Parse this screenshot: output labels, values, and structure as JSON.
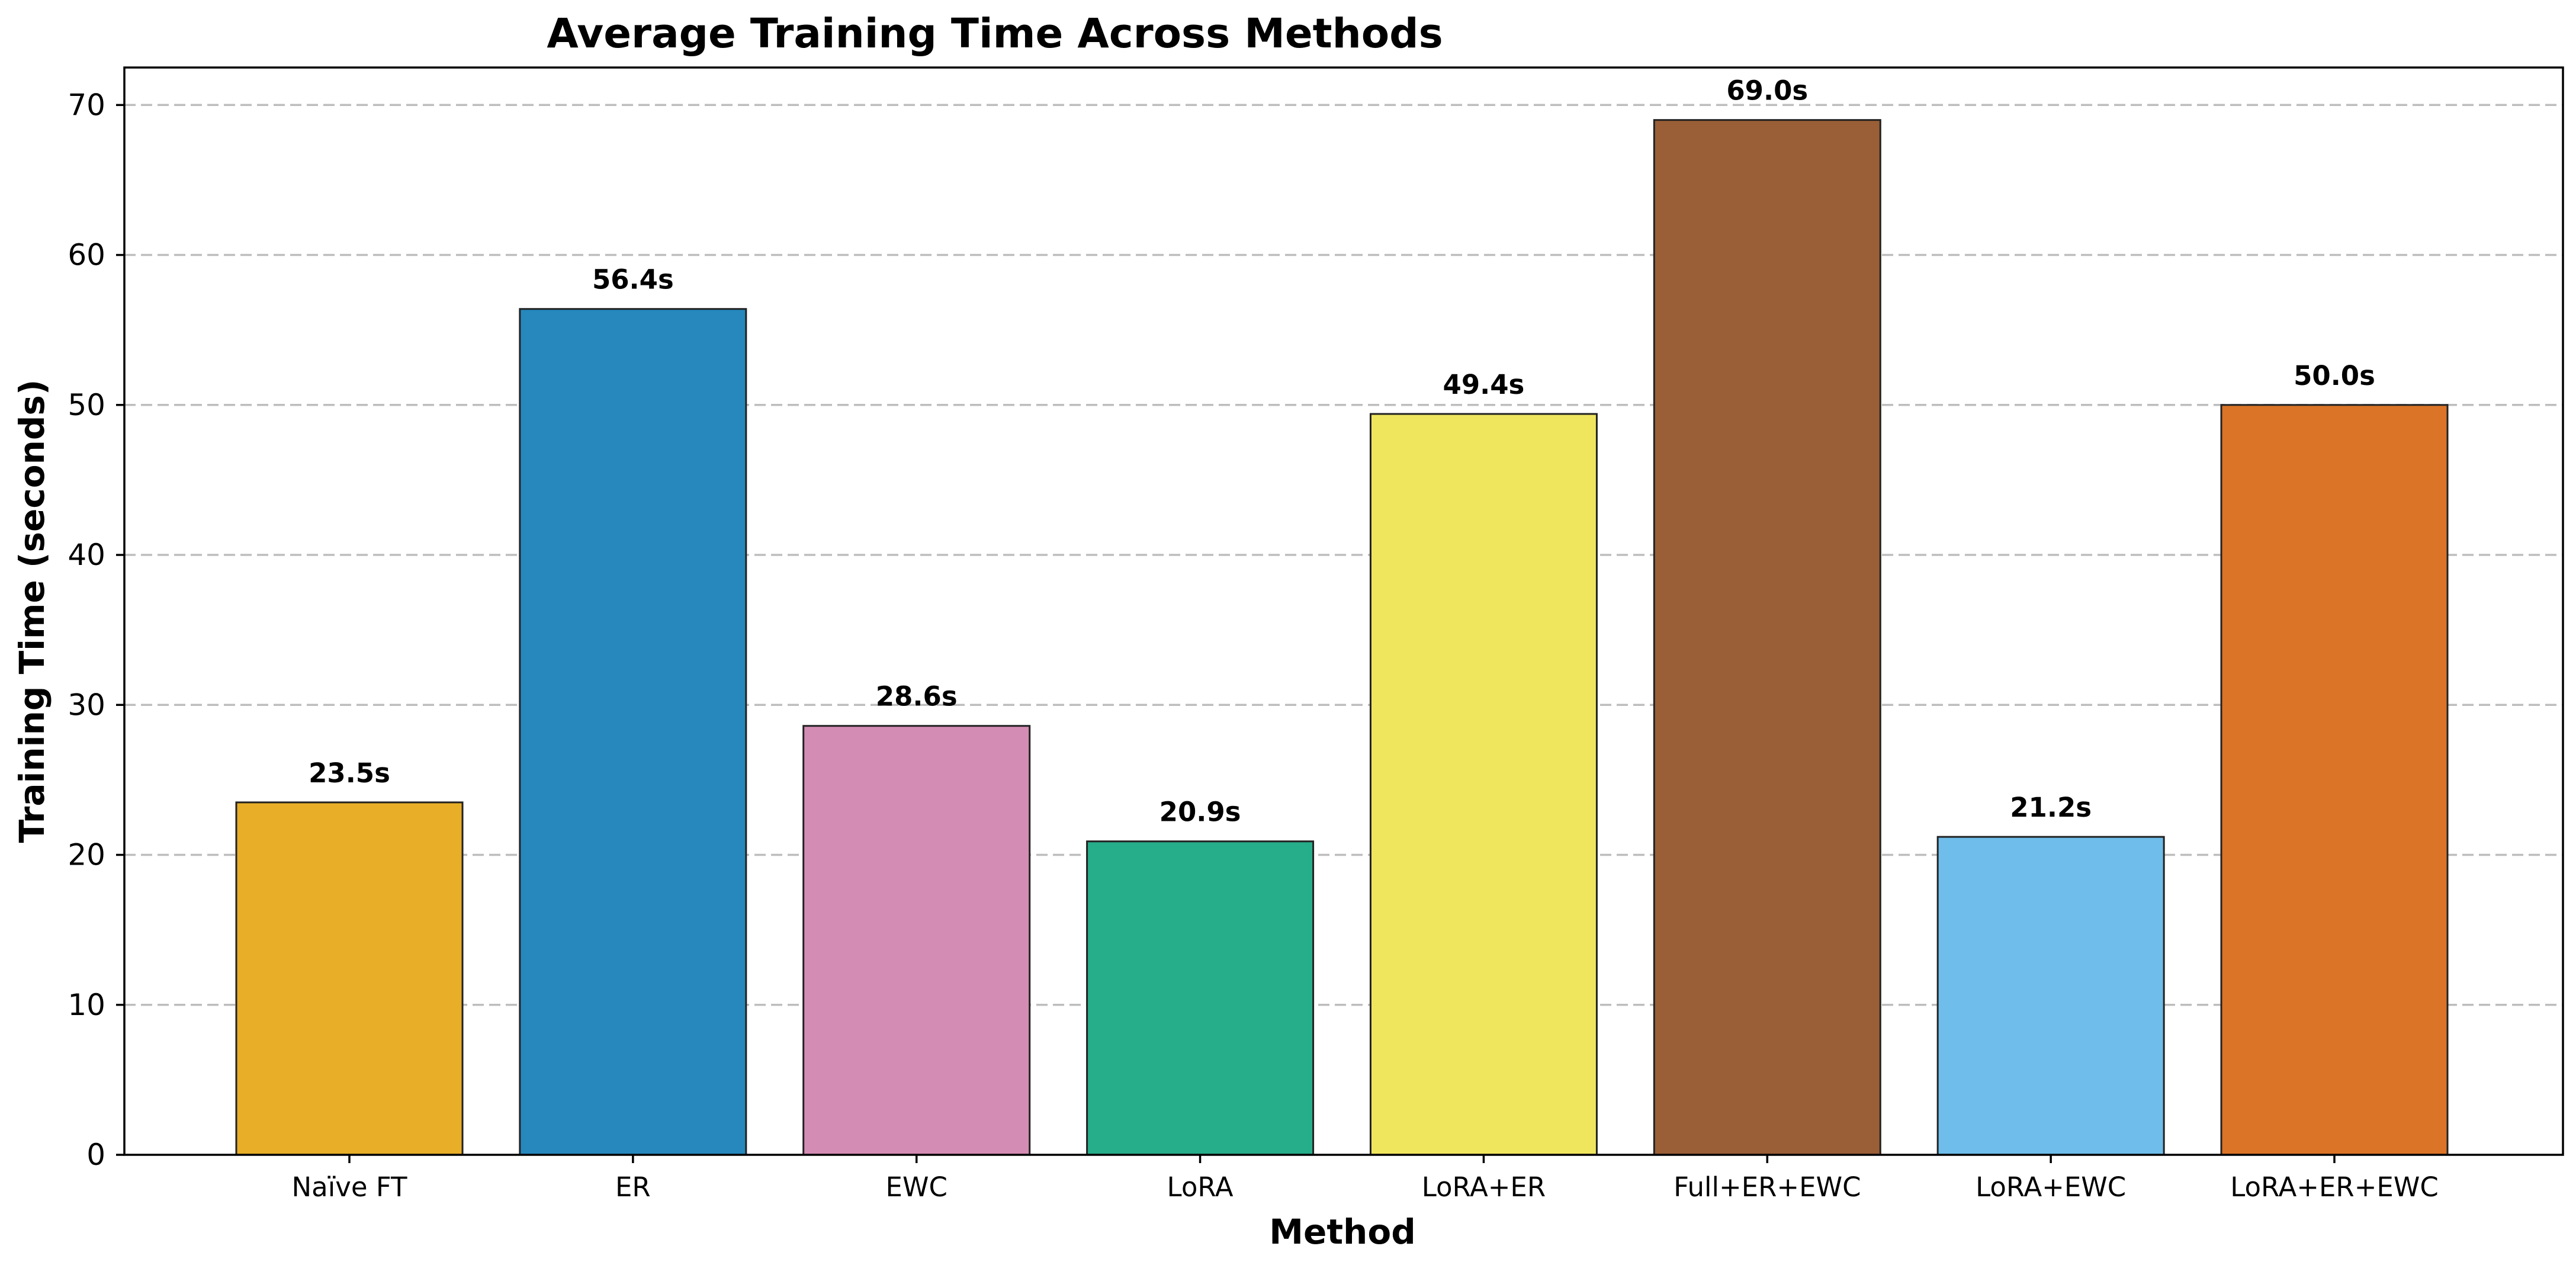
{
  "chart_data": {
    "type": "bar",
    "title": "Average Training Time Across Methods",
    "xlabel": "Method",
    "ylabel": "Training Time (seconds)",
    "ylim": [
      0,
      72.5
    ],
    "yticks": [
      0,
      10,
      20,
      30,
      40,
      50,
      60,
      70
    ],
    "grid": "y-dashed",
    "categories": [
      "Naïve FT",
      "ER",
      "EWC",
      "LoRA",
      "LoRA+ER",
      "Full+ER+EWC",
      "LoRA+EWC",
      "LoRA+ER+EWC"
    ],
    "values": [
      23.5,
      56.4,
      28.6,
      20.9,
      49.4,
      69.0,
      21.2,
      50.0
    ],
    "data_labels": [
      "23.5s",
      "56.4s",
      "28.6s",
      "20.9s",
      "49.4s",
      "69.0s",
      "21.2s",
      "50.0s"
    ],
    "colors": [
      "#E8AE28",
      "#2688BD",
      "#D38CB3",
      "#26AD89",
      "#F0E65E",
      "#9A5F36",
      "#6EBDEA",
      "#DB7427"
    ]
  }
}
